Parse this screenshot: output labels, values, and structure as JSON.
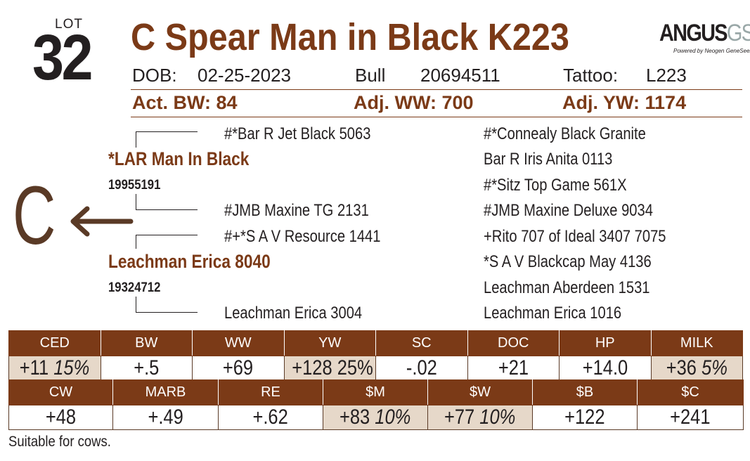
{
  "lot": {
    "label": "LOT",
    "number": "32"
  },
  "animal": {
    "name": "C Spear Man in Black K223",
    "dob_label": "DOB:",
    "dob": "02-25-2023",
    "sex": "Bull",
    "reg": "20694511",
    "tattoo_label": "Tattoo:",
    "tattoo": "L223",
    "act_bw": "Act. BW: 84",
    "adj_ww": "Adj. WW: 700",
    "adj_yw": "Adj. YW: 1174"
  },
  "logo": {
    "brand": "ANGUS",
    "suffix": "GS",
    "tagline": "Powered by Neogen GeneSeek"
  },
  "pedigree": {
    "sire": "*LAR Man In Black",
    "sire_reg": "19955191",
    "sire_sire": "#*Bar R Jet Black 5063",
    "sire_dam": "#JMB Maxine TG 2131",
    "dam": "Leachman Erica  8040",
    "dam_reg": "19324712",
    "dam_sire": "#+*S A V Resource 1441",
    "dam_dam": "Leachman Erica  3004",
    "great": [
      "#*Connealy Black Granite",
      "Bar R Iris Anita 0113",
      "#*Sitz Top Game 561X",
      "#JMB Maxine Deluxe 9034",
      "+Rito 707 of Ideal 3407 7075",
      "*S A V Blackcap May 4136",
      "Leachman Aberdeen 1531",
      "Leachman Erica  1016"
    ],
    "mark": "C"
  },
  "epd_row1": [
    {
      "label": "CED",
      "value": "+11",
      "pct": "15%",
      "highlight": true
    },
    {
      "label": "BW",
      "value": "+.5",
      "pct": "",
      "highlight": false
    },
    {
      "label": "WW",
      "value": "+69",
      "pct": "",
      "highlight": false
    },
    {
      "label": "YW",
      "value": "+128",
      "pct": "25%",
      "highlight": true
    },
    {
      "label": "SC",
      "value": "-.02",
      "pct": "",
      "highlight": false
    },
    {
      "label": "DOC",
      "value": "+21",
      "pct": "",
      "highlight": false
    },
    {
      "label": "HP",
      "value": "+14.0",
      "pct": "",
      "highlight": false
    },
    {
      "label": "MILK",
      "value": "+36",
      "pct": "5%",
      "highlight": true
    }
  ],
  "epd_row2": [
    {
      "label": "CW",
      "value": "+48",
      "pct": "",
      "highlight": false
    },
    {
      "label": "MARB",
      "value": "+.49",
      "pct": "",
      "highlight": false
    },
    {
      "label": "RE",
      "value": "+.62",
      "pct": "",
      "highlight": false
    },
    {
      "label": "$M",
      "value": "+83",
      "pct": "10%",
      "highlight": true
    },
    {
      "label": "$W",
      "value": "+77",
      "pct": "10%",
      "highlight": true
    },
    {
      "label": "$B",
      "value": "+122",
      "pct": "",
      "highlight": false
    },
    {
      "label": "$C",
      "value": "+241",
      "pct": "",
      "highlight": false
    }
  ],
  "footer": {
    "note": "Suitable for cows."
  }
}
